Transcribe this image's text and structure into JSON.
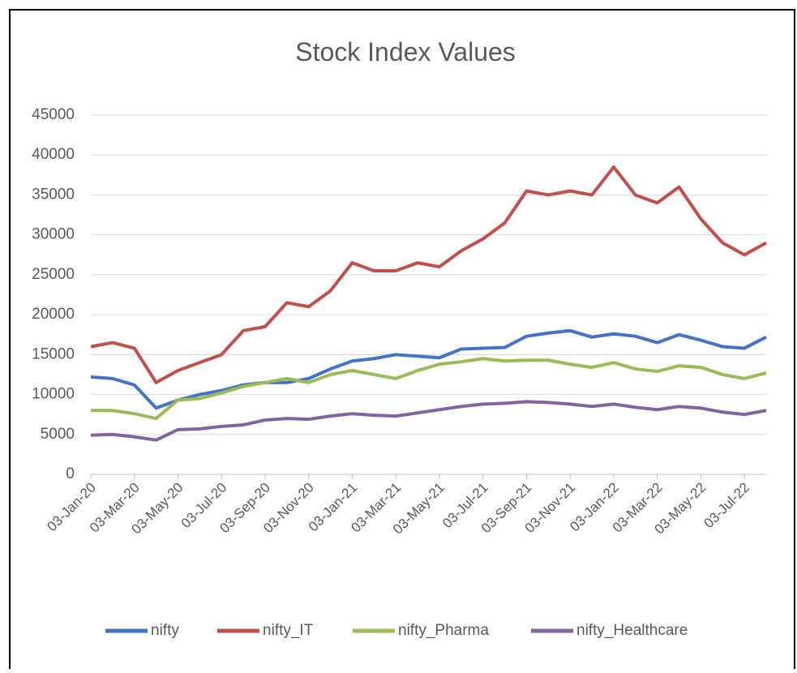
{
  "chart_data": {
    "type": "line",
    "title": "Stock Index Values",
    "x": [
      "03-Jan-20",
      "03-Feb-20",
      "03-Mar-20",
      "03-Apr-20",
      "03-May-20",
      "03-Jun-20",
      "03-Jul-20",
      "03-Aug-20",
      "03-Sep-20",
      "03-Oct-20",
      "03-Nov-20",
      "03-Dec-20",
      "03-Jan-21",
      "03-Feb-21",
      "03-Mar-21",
      "03-Apr-21",
      "03-May-21",
      "03-Jun-21",
      "03-Jul-21",
      "03-Aug-21",
      "03-Sep-21",
      "03-Oct-21",
      "03-Nov-21",
      "03-Dec-21",
      "03-Jan-22",
      "03-Feb-22",
      "03-Mar-22",
      "03-Apr-22",
      "03-May-22",
      "03-Jun-22",
      "03-Jul-22",
      "03-Aug-22"
    ],
    "xticks": [
      "03-Jan-20",
      "03-Mar-20",
      "03-May-20",
      "03-Jul-20",
      "03-Sep-20",
      "03-Nov-20",
      "03-Jan-21",
      "03-Mar-21",
      "03-May-21",
      "03-Jul-21",
      "03-Sep-21",
      "03-Nov-21",
      "03-Jan-22",
      "03-Mar-22",
      "03-May-22",
      "03-Jul-22"
    ],
    "series": [
      {
        "name": "nifty",
        "color": "#4472c4",
        "values": [
          12200,
          12000,
          11200,
          8300,
          9300,
          10000,
          10500,
          11200,
          11500,
          11500,
          12000,
          13200,
          14200,
          14500,
          15000,
          14800,
          14600,
          15700,
          15800,
          15900,
          17300,
          17700,
          18000,
          17200,
          17600,
          17300,
          16500,
          17500,
          16800,
          16000,
          15800,
          17200
        ]
      },
      {
        "name": "nifty_IT",
        "color": "#c0504d",
        "values": [
          16000,
          16500,
          15800,
          11500,
          13000,
          14000,
          15000,
          18000,
          18500,
          21500,
          21000,
          23000,
          26500,
          25500,
          25500,
          26500,
          26000,
          28000,
          29500,
          31500,
          35500,
          35000,
          35500,
          35000,
          38500,
          35000,
          34000,
          36000,
          32000,
          29000,
          27500,
          29000
        ]
      },
      {
        "name": "nifty_Pharma",
        "color": "#9bbb59",
        "values": [
          8000,
          8000,
          7600,
          7000,
          9300,
          9500,
          10200,
          11000,
          11500,
          12000,
          11500,
          12500,
          13000,
          12500,
          12000,
          13000,
          13800,
          14100,
          14500,
          14200,
          14300,
          14300,
          13800,
          13400,
          14000,
          13200,
          12900,
          13600,
          13400,
          12500,
          12000,
          12700
        ]
      },
      {
        "name": "nifty_Healthcare",
        "color": "#8064a2",
        "values": [
          4900,
          5000,
          4700,
          4300,
          5600,
          5700,
          6000,
          6200,
          6800,
          7000,
          6900,
          7300,
          7600,
          7400,
          7300,
          7700,
          8100,
          8500,
          8800,
          8900,
          9100,
          9000,
          8800,
          8500,
          8800,
          8400,
          8100,
          8500,
          8300,
          7800,
          7500,
          8000
        ]
      }
    ],
    "ylim": [
      0,
      45000
    ],
    "yticks": [
      0,
      5000,
      10000,
      15000,
      20000,
      25000,
      30000,
      35000,
      40000,
      45000
    ],
    "grid": true,
    "legend": "bottom"
  }
}
